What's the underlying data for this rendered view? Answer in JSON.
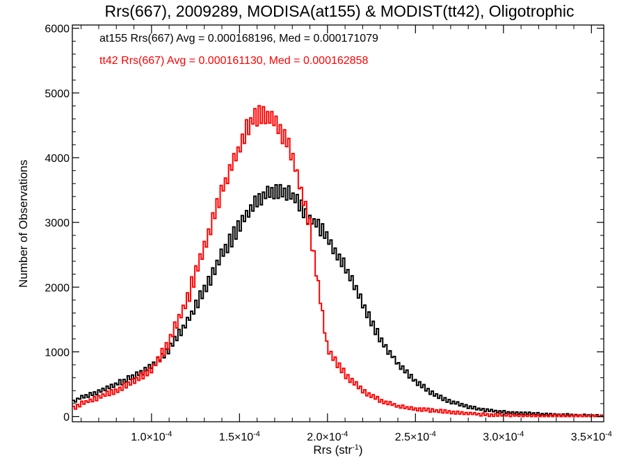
{
  "chart_data": {
    "type": "line",
    "title": "Rrs(667), 2009289, MODISA(at155) & MODIST(tt42), Oligotrophic",
    "xlabel": "Rrs (str",
    "xlabel_sup": "-1",
    "xlabel_end": ")",
    "ylabel": "Number of Observations",
    "xlim": [
      5.5e-05,
      0.000357
    ],
    "ylim": [
      -80,
      6050
    ],
    "x_ticks": [
      {
        "value": 0.0001,
        "mantissa": "1.0",
        "exp": "-4"
      },
      {
        "value": 0.00015,
        "mantissa": "1.5",
        "exp": "-4"
      },
      {
        "value": 0.0002,
        "mantissa": "2.0",
        "exp": "-4"
      },
      {
        "value": 0.00025,
        "mantissa": "2.5",
        "exp": "-4"
      },
      {
        "value": 0.0003,
        "mantissa": "3.0",
        "exp": "-4"
      },
      {
        "value": 0.00035,
        "mantissa": "3.5",
        "exp": "-4"
      }
    ],
    "y_ticks": [
      0,
      1000,
      2000,
      3000,
      4000,
      5000,
      6000
    ],
    "grid": false,
    "legend": "top-left",
    "annotations": [
      {
        "text": "at155 Rrs(667) Avg = 0.000168196, Med = 0.000171079",
        "color": "#000000"
      },
      {
        "text": "tt42 Rrs(667) Avg = 0.000161130, Med = 0.000162858",
        "color": "#ff0000"
      }
    ],
    "series": [
      {
        "color": "#000000",
        "x": [
          5.5e-05,
          6e-05,
          7e-05,
          8e-05,
          9e-05,
          0.0001,
          0.00011,
          0.00012,
          0.00013,
          0.00014,
          0.00015,
          0.000155,
          0.00016,
          0.000165,
          0.00017,
          0.000175,
          0.00018,
          0.000185,
          0.00019,
          0.000195,
          0.0002,
          0.00021,
          0.00022,
          0.00023,
          0.00024,
          0.00025,
          0.00026,
          0.00027,
          0.00028,
          0.00029,
          0.0003,
          0.00032,
          0.00034,
          0.000357
        ],
        "y": [
          220,
          300,
          380,
          500,
          620,
          780,
          1050,
          1450,
          1950,
          2500,
          2950,
          3150,
          3350,
          3450,
          3500,
          3480,
          3420,
          3250,
          3050,
          2950,
          2750,
          2300,
          1750,
          1200,
          820,
          550,
          350,
          230,
          150,
          100,
          70,
          40,
          20,
          10
        ],
        "jitter": 130
      },
      {
        "color": "#ff0000",
        "x": [
          5.5e-05,
          6e-05,
          7e-05,
          8e-05,
          9e-05,
          0.0001,
          0.00011,
          0.00012,
          0.00013,
          0.00014,
          0.00015,
          0.000155,
          0.00016,
          0.000165,
          0.00017,
          0.000175,
          0.00018,
          0.000185,
          0.00019,
          0.000195,
          0.0002,
          0.00021,
          0.00022,
          0.00023,
          0.00024,
          0.00025,
          0.00026,
          0.00027,
          0.00028,
          0.00029,
          0.0003,
          0.00032,
          0.00034,
          0.000357
        ],
        "y": [
          120,
          200,
          300,
          400,
          550,
          720,
          1150,
          1800,
          2600,
          3500,
          4150,
          4500,
          4650,
          4680,
          4550,
          4350,
          4050,
          3500,
          2950,
          2000,
          1050,
          650,
          400,
          250,
          160,
          120,
          90,
          70,
          50,
          30,
          20,
          10,
          5,
          0
        ],
        "jitter": 160
      }
    ],
    "bin_width": 1.2e-06
  }
}
